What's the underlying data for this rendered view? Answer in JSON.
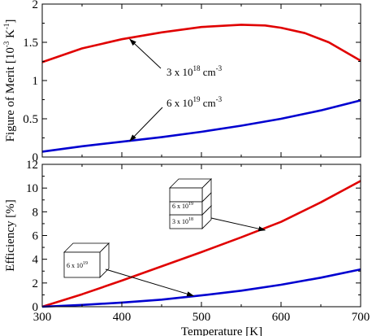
{
  "chart_data": [
    {
      "type": "line",
      "ylabel": "Figure of Merit [10",
      "ylabel_sup": "-3",
      "ylabel_tail": " K",
      "ylabel_sup2": "-1",
      "ylabel_end": "]",
      "xlim": [
        300,
        700
      ],
      "ylim": [
        0,
        2
      ],
      "yticks": [
        "0",
        "0.5",
        "1",
        "1.5",
        "2"
      ],
      "grid": false,
      "colors": {
        "red": "#e00000",
        "blue": "#0000d0"
      },
      "series": [
        {
          "color": "red",
          "x": [
            300,
            350,
            400,
            450,
            500,
            550,
            580,
            600,
            630,
            660,
            700
          ],
          "y": [
            1.24,
            1.42,
            1.54,
            1.63,
            1.7,
            1.73,
            1.72,
            1.69,
            1.62,
            1.5,
            1.26
          ]
        },
        {
          "color": "blue",
          "x": [
            300,
            350,
            400,
            450,
            500,
            550,
            600,
            650,
            700
          ],
          "y": [
            0.07,
            0.14,
            0.2,
            0.26,
            0.33,
            0.41,
            0.5,
            0.61,
            0.74
          ]
        }
      ],
      "annotations": [
        {
          "base": "3 x 10",
          "sup": "18",
          "unit": " cm",
          "unit_sup": "-3",
          "arrow_to": [
            410,
            1.54
          ]
        },
        {
          "base": "6 x 10",
          "sup": "19",
          "unit": " cm",
          "unit_sup": "-3",
          "arrow_to": [
            410,
            0.21
          ]
        }
      ]
    },
    {
      "type": "line",
      "xlabel": "Temperature [K]",
      "ylabel": "Efficiency  [%]",
      "xlim": [
        300,
        700
      ],
      "ylim": [
        0,
        12
      ],
      "xticks": [
        "300",
        "400",
        "500",
        "600",
        "700"
      ],
      "yticks": [
        "0",
        "2",
        "4",
        "6",
        "8",
        "10",
        "12"
      ],
      "grid": false,
      "series": [
        {
          "color": "red",
          "x": [
            300,
            350,
            400,
            450,
            500,
            550,
            600,
            650,
            700
          ],
          "y": [
            0.0,
            1.05,
            2.2,
            3.4,
            4.6,
            5.85,
            7.15,
            8.8,
            10.6
          ]
        },
        {
          "color": "blue",
          "x": [
            300,
            350,
            400,
            450,
            500,
            550,
            600,
            650,
            700
          ],
          "y": [
            0.0,
            0.15,
            0.35,
            0.6,
            0.95,
            1.35,
            1.85,
            2.45,
            3.15
          ]
        }
      ],
      "annotations": [
        {
          "box": "stacked",
          "top": {
            "base": "6 x 10",
            "sup": "19"
          },
          "bottom": {
            "base": "3 x 10",
            "sup": "18"
          },
          "arrow_to": [
            580,
            6.45
          ]
        },
        {
          "box": "single",
          "label": {
            "base": "6 x 10",
            "sup": "19"
          },
          "arrow_to": [
            490,
            0.92
          ]
        }
      ]
    }
  ]
}
